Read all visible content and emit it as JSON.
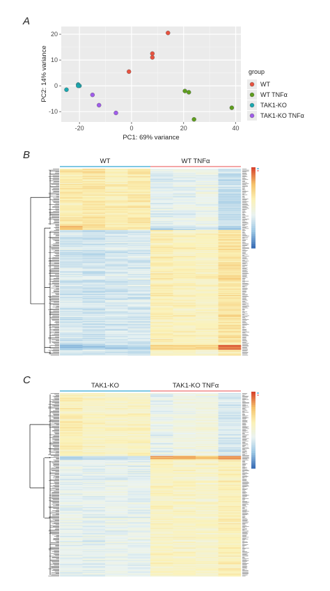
{
  "panels": {
    "a": "A",
    "b": "B",
    "c": "C"
  },
  "chart_data": [
    {
      "type": "scatter",
      "xlabel": "PC1: 69% variance",
      "ylabel": "PC2: 14% variance",
      "xlim": [
        -27,
        42
      ],
      "ylim": [
        -14,
        23
      ],
      "xticks": [
        -20,
        0,
        20,
        40
      ],
      "yticks": [
        -10,
        0,
        10,
        20
      ],
      "grid": true,
      "legend_title": "group",
      "legend_position": "right",
      "series": [
        {
          "name": "WT",
          "color": "#E8523F",
          "points": [
            [
              -1,
              5.5
            ],
            [
              8,
              11
            ],
            [
              8,
              12.5
            ],
            [
              14,
              20.5
            ]
          ]
        },
        {
          "name": "WT TNFα",
          "color": "#5E9E1E",
          "points": [
            [
              20.5,
              -2
            ],
            [
              22,
              -2.5
            ],
            [
              24,
              -13
            ],
            [
              38.5,
              -8.5
            ]
          ]
        },
        {
          "name": "TAK1-KO",
          "color": "#18A8B0",
          "points": [
            [
              -25,
              -1.5
            ],
            [
              -20.5,
              0.5
            ],
            [
              -20,
              0
            ],
            [
              -20.5,
              0
            ]
          ]
        },
        {
          "name": "TAK1-KO TNFα",
          "color": "#A05CEB",
          "points": [
            [
              -15,
              -3.5
            ],
            [
              -12.5,
              -7.5
            ],
            [
              -6,
              -10.5
            ]
          ]
        }
      ]
    },
    {
      "type": "heatmap",
      "groups": [
        "WT",
        "WT TNFα"
      ],
      "group_colors": [
        "#7EC8E3",
        "#F4A6A6"
      ],
      "n_columns": 8,
      "row_blocks": [
        {
          "rows": 60,
          "values": [
            0.62,
            0.64,
            0.6,
            0.63,
            0.38,
            0.4,
            0.42,
            0.3
          ]
        },
        {
          "rows": 4,
          "values": [
            0.82,
            0.68,
            0.66,
            0.65,
            0.3,
            0.32,
            0.35,
            0.22
          ]
        },
        {
          "rows": 120,
          "values": [
            0.34,
            0.33,
            0.35,
            0.36,
            0.6,
            0.58,
            0.57,
            0.66
          ]
        },
        {
          "rows": 5,
          "values": [
            0.2,
            0.22,
            0.21,
            0.24,
            0.74,
            0.68,
            0.7,
            0.9
          ]
        },
        {
          "rows": 6,
          "values": [
            0.36,
            0.35,
            0.34,
            0.33,
            0.58,
            0.56,
            0.55,
            0.62
          ]
        }
      ],
      "colorbar": [
        "#3B6FB6",
        "#9CC7E4",
        "#EAF3F2",
        "#FBF2B8",
        "#F5C26A",
        "#D7462F"
      ]
    },
    {
      "type": "heatmap",
      "groups": [
        "TAK1-KO",
        "TAK1-KO TNFα"
      ],
      "group_colors": [
        "#7EC8E3",
        "#F4A6A6"
      ],
      "n_columns": 8,
      "row_blocks": [
        {
          "rows": 70,
          "values": [
            0.6,
            0.56,
            0.55,
            0.57,
            0.4,
            0.45,
            0.46,
            0.35
          ]
        },
        {
          "rows": 4,
          "values": [
            0.25,
            0.28,
            0.3,
            0.3,
            0.82,
            0.78,
            0.76,
            0.85
          ]
        },
        {
          "rows": 130,
          "values": [
            0.4,
            0.39,
            0.41,
            0.4,
            0.56,
            0.55,
            0.54,
            0.6
          ]
        }
      ],
      "colorbar": [
        "#3B6FB6",
        "#9CC7E4",
        "#EAF3F2",
        "#FBF2B8",
        "#F5C26A",
        "#D7462F"
      ]
    }
  ]
}
